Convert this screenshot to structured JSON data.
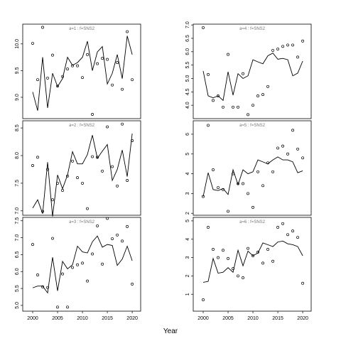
{
  "xlabel": "Year",
  "chart_data": [
    {
      "type": "scatter",
      "title": "a=1 : f=SNS2",
      "x": [
        2000,
        2001,
        2002,
        2003,
        2004,
        2005,
        2006,
        2007,
        2008,
        2009,
        2010,
        2011,
        2012,
        2013,
        2014,
        2015,
        2016,
        2017,
        2018,
        2019,
        2020
      ],
      "series": [
        {
          "mark": "points",
          "color": "#000000",
          "values": [
            10.01,
            9.33,
            10.31,
            9.36,
            9.79,
            9.21,
            9.39,
            9.53,
            9.59,
            9.59,
            9.37,
            9.8,
            8.68,
            9.63,
            9.73,
            9.71,
            9.23,
            9.65,
            9.15,
            10.23,
            9.33
          ]
        },
        {
          "mark": "line",
          "color": "#000000",
          "values": [
            9.1,
            8.75,
            9.75,
            8.8,
            9.45,
            9.2,
            9.35,
            9.75,
            9.6,
            9.65,
            9.75,
            10.05,
            9.5,
            9.85,
            9.95,
            9.25,
            9.45,
            9.8,
            9.35,
            10.15,
            9.8
          ]
        }
      ],
      "xlim": [
        1998,
        2021.7
      ],
      "ylim": [
        8.6,
        10.37
      ],
      "yticks": [
        {
          "value": 9.0,
          "label": "9.0"
        },
        {
          "value": 9.5,
          "label": "9.5"
        },
        {
          "value": 10.0,
          "label": "10.0"
        }
      ]
    },
    {
      "type": "scatter",
      "title": "a=2 : f=SNS2",
      "x": [
        2000,
        2001,
        2002,
        2003,
        2004,
        2005,
        2006,
        2007,
        2008,
        2009,
        2010,
        2011,
        2012,
        2013,
        2014,
        2015,
        2016,
        2017,
        2018,
        2019,
        2020
      ],
      "series": [
        {
          "mark": "points",
          "color": "#000000",
          "values": [
            7.82,
            7.97,
            6.99,
            7.75,
            7.2,
            7.5,
            7.37,
            7.63,
            7.9,
            7.6,
            7.5,
            7.04,
            7.98,
            7.97,
            7.72,
            8.52,
            7.8,
            7.45,
            8.57,
            7.55,
            8.27
          ]
        },
        {
          "mark": "line",
          "color": "#000000",
          "values": [
            7.05,
            7.2,
            6.95,
            7.88,
            6.9,
            7.65,
            7.4,
            7.65,
            8.07,
            7.85,
            7.85,
            8.02,
            8.37,
            7.95,
            8.08,
            8.2,
            7.55,
            7.75,
            8.1,
            7.62,
            8.4
          ]
        }
      ],
      "xlim": [
        1998,
        2021.7
      ],
      "ylim": [
        6.92,
        8.63
      ],
      "yticks": [
        {
          "value": 7.0,
          "label": "7.0"
        },
        7.5,
        {
          "value": 8.0,
          "label": "8.0"
        },
        8.5
      ]
    },
    {
      "type": "scatter",
      "title": "a=3 : f=SNS2",
      "x": [
        2000,
        2001,
        2002,
        2003,
        2004,
        2005,
        2006,
        2007,
        2008,
        2009,
        2010,
        2011,
        2012,
        2013,
        2014,
        2015,
        2016,
        2017,
        2018,
        2019,
        2020
      ],
      "series": [
        {
          "mark": "points",
          "color": "#000000",
          "values": [
            6.8,
            5.9,
            5.55,
            5.53,
            6.98,
            4.95,
            5.93,
            4.95,
            6.12,
            6.2,
            6.25,
            5.72,
            6.52,
            7.35,
            6.22,
            7.57,
            6.97,
            7.08,
            6.9,
            7.33,
            5.63
          ]
        },
        {
          "mark": "line",
          "color": "#000000",
          "values": [
            5.52,
            5.57,
            5.57,
            5.37,
            6.42,
            5.43,
            6.3,
            6.08,
            6.2,
            6.75,
            6.58,
            6.55,
            6.88,
            7.05,
            6.72,
            6.8,
            6.77,
            6.18,
            6.37,
            6.75,
            6.32
          ]
        }
      ],
      "xlim": [
        1998,
        2021.7
      ],
      "ylim": [
        4.83,
        7.6
      ],
      "xticks": [
        2000,
        2005,
        2010,
        2015,
        2020
      ],
      "yticks": [
        {
          "value": 5.0,
          "label": "5.0"
        },
        5.5,
        {
          "value": 6.0,
          "label": "6.0"
        },
        6.5,
        {
          "value": 7.0,
          "label": "7.0"
        },
        7.5
      ]
    },
    {
      "type": "scatter",
      "title": "a=4 : f=SNS2",
      "x": [
        2000,
        2001,
        2002,
        2003,
        2004,
        2005,
        2006,
        2007,
        2008,
        2009,
        2010,
        2011,
        2012,
        2013,
        2014,
        2015,
        2016,
        2017,
        2018,
        2019,
        2020
      ],
      "series": [
        {
          "mark": "points",
          "color": "#000000",
          "values": [
            6.9,
            5.15,
            4.18,
            4.35,
            3.93,
            5.9,
            3.93,
            3.93,
            5.18,
            3.65,
            4.0,
            4.35,
            4.4,
            4.7,
            6.05,
            6.1,
            6.2,
            6.25,
            6.25,
            5.8,
            6.4
          ]
        },
        {
          "mark": "line",
          "color": "#000000",
          "values": [
            5.28,
            4.35,
            4.28,
            4.35,
            4.18,
            5.25,
            4.38,
            5.18,
            5.0,
            5.1,
            5.7,
            5.62,
            5.55,
            5.85,
            5.95,
            5.72,
            5.75,
            5.7,
            5.1,
            5.2,
            5.65
          ]
        }
      ],
      "xlim": [
        1998,
        2021.7
      ],
      "ylim": [
        3.5,
        7.03
      ],
      "yticks": [
        {
          "value": 4.0,
          "label": "4.0"
        },
        4.5,
        {
          "value": 5.0,
          "label": "5.0"
        },
        5.5,
        {
          "value": 6.0,
          "label": "6.0"
        },
        6.5,
        {
          "value": 7.0,
          "label": "7.0"
        }
      ]
    },
    {
      "type": "scatter",
      "title": "a=5 : f=SNS2",
      "x": [
        2000,
        2001,
        2002,
        2003,
        2004,
        2005,
        2006,
        2007,
        2008,
        2009,
        2010,
        2011,
        2012,
        2013,
        2014,
        2015,
        2016,
        2017,
        2018,
        2019,
        2020
      ],
      "series": [
        {
          "mark": "points",
          "color": "#000000",
          "values": [
            2.85,
            6.45,
            4.2,
            3.3,
            3.2,
            2.1,
            4.0,
            3.5,
            3.5,
            3.0,
            2.3,
            4.1,
            3.4,
            4.55,
            4.1,
            5.3,
            5.4,
            5.0,
            6.2,
            5.25,
            4.8
          ]
        },
        {
          "mark": "line",
          "color": "#000000",
          "values": [
            2.85,
            4.05,
            3.2,
            3.15,
            3.25,
            2.95,
            4.2,
            3.45,
            4.2,
            4.0,
            4.1,
            4.7,
            4.6,
            4.5,
            4.7,
            4.85,
            4.7,
            4.7,
            4.6,
            4.05,
            4.15
          ]
        }
      ],
      "xlim": [
        1998,
        2021.7
      ],
      "ylim": [
        1.9,
        6.68
      ],
      "yticks": [
        2,
        3,
        4,
        5,
        6
      ]
    },
    {
      "type": "scatter",
      "title": "a=6 : f=SNS2",
      "x": [
        2000,
        2001,
        2002,
        2003,
        2004,
        2005,
        2006,
        2007,
        2008,
        2009,
        2010,
        2011,
        2012,
        2013,
        2014,
        2015,
        2016,
        2017,
        2018,
        2019,
        2020
      ],
      "series": [
        {
          "mark": "points",
          "color": "#000000",
          "values": [
            0.7,
            4.65,
            3.45,
            3.0,
            3.4,
            2.95,
            2.4,
            2.0,
            1.9,
            3.5,
            3.1,
            3.3,
            2.7,
            3.45,
            2.8,
            4.65,
            4.85,
            4.25,
            4.45,
            4.1,
            1.6
          ]
        },
        {
          "mark": "line",
          "color": "#000000",
          "values": [
            1.65,
            1.7,
            2.95,
            2.15,
            2.2,
            2.45,
            2.2,
            3.4,
            2.55,
            3.35,
            3.1,
            3.25,
            3.8,
            3.7,
            3.6,
            3.85,
            3.9,
            3.75,
            3.7,
            3.6,
            3.1
          ]
        }
      ],
      "xlim": [
        1998,
        2021.7
      ],
      "ylim": [
        0.08,
        5.19
      ],
      "xticks": [
        2000,
        2005,
        2010,
        2015,
        2020
      ],
      "yticks": [
        1,
        2,
        3,
        4,
        5
      ]
    }
  ]
}
